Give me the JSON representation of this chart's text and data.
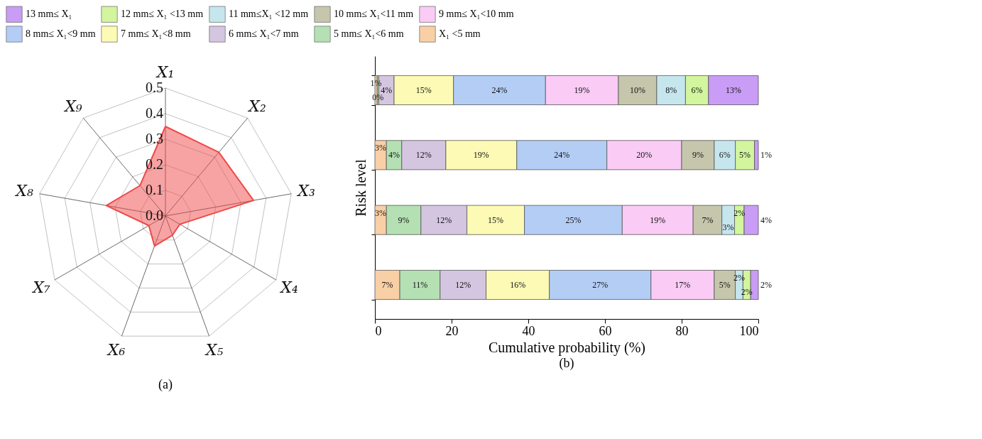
{
  "chart_data": [
    {
      "type": "radar",
      "categories": [
        "X₁",
        "X₂",
        "X₃",
        "X₄",
        "X₅",
        "X₆",
        "X₇",
        "X₈",
        "X₉"
      ],
      "series": [
        {
          "color": "#f04848",
          "values": [
            0.35,
            0.325,
            0.35,
            0.065,
            0.08,
            0.125,
            0.075,
            0.235,
            0.155
          ]
        }
      ],
      "ylim": [
        0,
        0.5
      ],
      "yticks": [
        {
          "value": 0,
          "label": "0.0"
        },
        0.1,
        0.2,
        0.3,
        0.4,
        0.5
      ],
      "grid": true,
      "annotations": [
        "(a)"
      ]
    },
    {
      "type": "bar",
      "orientation": "horizontal",
      "stacked": true,
      "categories": [
        null,
        null,
        null,
        null
      ],
      "xlabel": "Cumulative probability (%)",
      "ylabel": "Risk level",
      "xlim": [
        0,
        100
      ],
      "xticks": [
        0,
        20,
        40,
        60,
        80,
        100
      ],
      "legend": "top",
      "tick_labels": "x",
      "series": [
        {
          "name": "X₁ <5 mm",
          "color": "#f9cfa5",
          "values": [
            0.6,
            3,
            3,
            6.5
          ],
          "value_labels": [
            "1%",
            "3%",
            "3%",
            "7%"
          ]
        },
        {
          "name": "5 mm≤ X₁<6 mm",
          "color": "#b4e0b4",
          "values": [
            0.4,
            4,
            9,
            10.5
          ],
          "value_labels": [
            "0%",
            "4%",
            "9%",
            "11%"
          ]
        },
        {
          "name": "6 mm≤ X₁<7 mm",
          "color": "#d4c6e0",
          "values": [
            4,
            11.5,
            12,
            12
          ],
          "value_labels": [
            "4%",
            "12%",
            "12%",
            "12%"
          ]
        },
        {
          "name": "7 mm≤ X₁<8 mm",
          "color": "#fcfab4",
          "values": [
            15.5,
            18.5,
            15,
            16.5
          ],
          "value_labels": [
            "15%",
            "19%",
            "15%",
            "16%"
          ]
        },
        {
          "name": "8 mm≤ X₁<9 mm",
          "color": "#b4cdf5",
          "values": [
            24,
            23.5,
            25.5,
            26.5
          ],
          "value_labels": [
            "24%",
            "24%",
            "25%",
            "27%"
          ]
        },
        {
          "name": "9 mm≤ X₁<10 mm",
          "color": "#f9cbf5",
          "values": [
            19,
            19.5,
            18.5,
            16.5
          ],
          "value_labels": [
            "19%",
            "20%",
            "19%",
            "17%"
          ]
        },
        {
          "name": "10 mm≤ X₁<11 mm",
          "color": "#c6c6ad",
          "values": [
            10,
            8.5,
            7.5,
            5.5
          ],
          "value_labels": [
            "10%",
            "9%",
            "7%",
            "5%"
          ]
        },
        {
          "name": "11 mm≤X₁ <12 mm",
          "color": "#c6e6ee",
          "values": [
            7.5,
            5.5,
            3.3,
            2
          ],
          "value_labels": [
            "8%",
            "6%",
            "3%",
            "2%"
          ]
        },
        {
          "name": "12 mm≤ X₁ <13 mm",
          "color": "#d2f59e",
          "values": [
            6,
            5,
            2.5,
            2
          ],
          "value_labels": [
            "6%",
            "5%",
            "2%",
            "2%"
          ]
        },
        {
          "name": "13 mm≤ X₁",
          "color": "#c99cf5",
          "values": [
            13,
            1,
            3.7,
            2
          ],
          "value_labels": [
            "13%",
            "1%",
            "4%",
            "2%"
          ]
        }
      ],
      "annotations": [
        "(b)"
      ]
    }
  ]
}
